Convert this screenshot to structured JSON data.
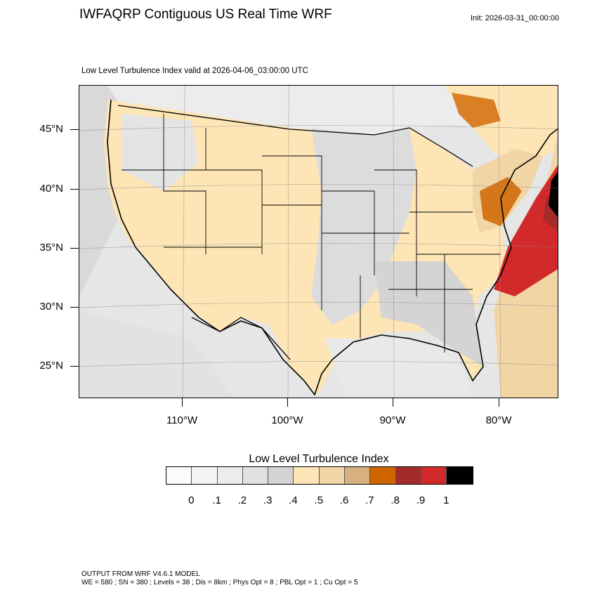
{
  "header": {
    "title": "IWFAQRP Contiguous US Real Time WRF",
    "init": "Init: 2026-03-31_00:00:00",
    "subtitle": "Low Level Turbulence Index valid at 2026-04-06_03:00:00 UTC"
  },
  "map": {
    "lat_labels": [
      "45°N",
      "40°N",
      "35°N",
      "30°N",
      "25°N"
    ],
    "lon_labels": [
      "110°W",
      "100°W",
      "90°W",
      "80°W"
    ]
  },
  "colorbar": {
    "title": "Low Level Turbulence Index",
    "labels": [
      "0",
      ".1",
      ".2",
      ".3",
      ".4",
      ".5",
      ".6",
      ".7",
      ".8",
      ".9",
      "1"
    ],
    "colors": [
      "#fbfbfb",
      "#f4f4f4",
      "#ececec",
      "#e1e1e1",
      "#d4d4d4",
      "#fde5b5",
      "#f2d5a5",
      "#d7b07f",
      "#d06500",
      "#a52a2a",
      "#d22a2a",
      "#000000"
    ]
  },
  "footer": {
    "line1": "OUTPUT FROM WRF V4.6.1 MODEL",
    "line2": "WE = 580 ; SN = 380 ; Levels = 38 ; Dis = 8km ; Phys Opt = 8 ; PBL Opt = 1 ; Cu Opt = 5"
  }
}
